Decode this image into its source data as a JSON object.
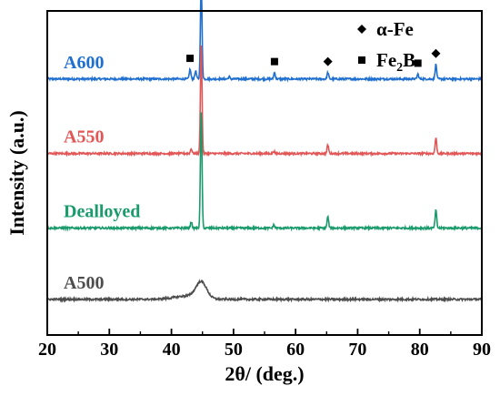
{
  "chart_data": {
    "type": "line",
    "xlabel": "2θ/ (deg.)",
    "ylabel": "Intensity (a.u.)",
    "xlim": [
      20,
      90
    ],
    "x_ticks": [
      "20",
      "30",
      "40",
      "50",
      "60",
      "70",
      "80",
      "90"
    ],
    "y_ticks_labeled": false,
    "grid": false,
    "series": [
      {
        "name": "A600",
        "color": "#1f6fd1",
        "baseline": 0.79,
        "peaks": [
          {
            "x": 43.0,
            "h": 0.03
          },
          {
            "x": 43.9,
            "h": 0.025
          },
          {
            "x": 44.8,
            "h": 0.3
          },
          {
            "x": 49.3,
            "h": 0.007
          },
          {
            "x": 56.6,
            "h": 0.02
          },
          {
            "x": 65.2,
            "h": 0.02
          },
          {
            "x": 79.7,
            "h": 0.015
          },
          {
            "x": 82.6,
            "h": 0.045
          }
        ]
      },
      {
        "name": "A550",
        "color": "#e35656",
        "baseline": 0.56,
        "peaks": [
          {
            "x": 43.2,
            "h": 0.015
          },
          {
            "x": 44.8,
            "h": 0.34
          },
          {
            "x": 56.5,
            "h": 0.007
          },
          {
            "x": 65.2,
            "h": 0.027
          },
          {
            "x": 82.6,
            "h": 0.048
          }
        ]
      },
      {
        "name": "Dealloyed",
        "color": "#1a9b6c",
        "baseline": 0.33,
        "peaks": [
          {
            "x": 43.2,
            "h": 0.02
          },
          {
            "x": 44.8,
            "h": 0.36
          },
          {
            "x": 56.5,
            "h": 0.01
          },
          {
            "x": 65.2,
            "h": 0.035
          },
          {
            "x": 82.6,
            "h": 0.055
          }
        ]
      },
      {
        "name": "A500",
        "color": "#4d4d4d",
        "baseline": 0.11,
        "peaks": [
          {
            "x": 44.8,
            "h": 0.05,
            "w": 1.2
          },
          {
            "x": 42.5,
            "h": 0.01,
            "w": 3.0
          }
        ]
      }
    ],
    "legend": {
      "position": "top-right",
      "entries": [
        {
          "marker": "diamond",
          "label": "α-Fe",
          "sub": ""
        },
        {
          "marker": "square",
          "label": "Fe",
          "sub": "2",
          "suffix": "B"
        }
      ]
    },
    "annotations": [
      {
        "marker": "diamond",
        "x": 44.8,
        "series": "A600"
      },
      {
        "marker": "square",
        "x": 44.8,
        "series": "A600"
      },
      {
        "marker": "square",
        "x": 43.0,
        "series": "A600"
      },
      {
        "marker": "square",
        "x": 56.6,
        "series": "A600"
      },
      {
        "marker": "diamond",
        "x": 65.2,
        "series": "A600"
      },
      {
        "marker": "square",
        "x": 79.7,
        "series": "A600"
      },
      {
        "marker": "diamond",
        "x": 82.6,
        "series": "A600"
      }
    ]
  }
}
